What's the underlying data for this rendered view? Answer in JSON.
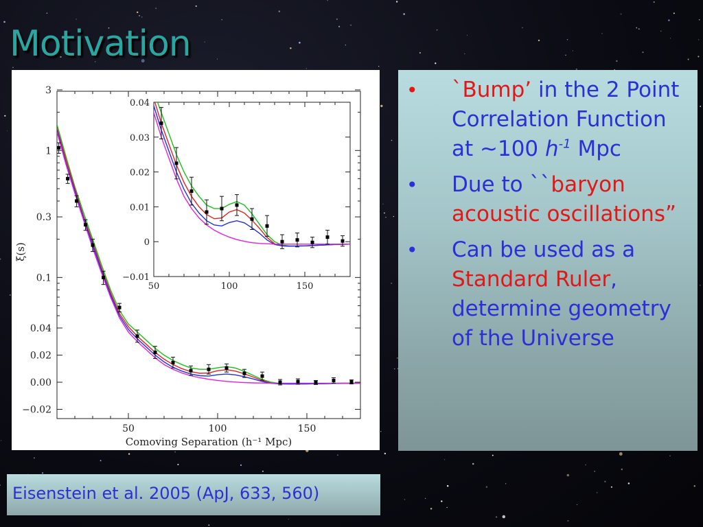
{
  "slide": {
    "title": "Motivation",
    "citation": "Eisenstein et al. 2005 (ApJ, 633, 560)",
    "bullets": [
      {
        "parts": [
          {
            "text": "`Bump’",
            "color": "red"
          },
          {
            "text": " in the 2 Point Correlation Function at ~100 ",
            "color": "blue"
          },
          {
            "text": "h",
            "color": "blue",
            "style": "italic"
          },
          {
            "text": "-1",
            "color": "blue",
            "style": "italic-sup"
          },
          {
            "text": " Mpc",
            "color": "blue"
          }
        ]
      },
      {
        "parts": [
          {
            "text": "Due to ``",
            "color": "blue"
          },
          {
            "text": "baryon acoustic oscillations”",
            "color": "red"
          }
        ]
      },
      {
        "parts": [
          {
            "text": "Can be used as a ",
            "color": "blue"
          },
          {
            "text": "Standard Ruler",
            "color": "red"
          },
          {
            "text": ", determine geometry of the Universe",
            "color": "blue"
          }
        ]
      }
    ],
    "colors": {
      "title": "#2aa6a0",
      "text_blue": "#2a2fd8",
      "text_red": "#e01818"
    }
  },
  "chart_data": [
    {
      "type": "line",
      "xlabel": "Comoving Separation (h⁻¹ Mpc)",
      "ylabel": "ξ(s)",
      "xlim": [
        10,
        180
      ],
      "x_ticks": [
        50,
        100,
        150
      ],
      "y_scale": "hybrid: log above 0.04, linear below",
      "y_ticks": [
        "3",
        "1",
        "0.3",
        "0.1",
        "0.04",
        "0.02",
        "0.00",
        "−0.02"
      ],
      "y_tick_values": [
        3,
        1,
        0.3,
        0.1,
        0.04,
        0.02,
        0.0,
        -0.02
      ],
      "data_points": {
        "x": [
          11,
          16,
          21,
          26,
          30,
          36,
          45,
          55,
          65,
          75,
          85,
          95,
          105,
          115,
          125,
          135,
          145,
          155,
          165,
          175
        ],
        "y": [
          1.05,
          0.6,
          0.4,
          0.26,
          0.18,
          0.1,
          0.058,
          0.034,
          0.022,
          0.0145,
          0.0085,
          0.0095,
          0.0105,
          0.0065,
          0.0045,
          0.0,
          0.0005,
          -0.0002,
          0.0013,
          0.0002
        ],
        "err": [
          0.1,
          0.05,
          0.04,
          0.025,
          0.02,
          0.012,
          0.0045,
          0.0045,
          0.0045,
          0.004,
          0.0035,
          0.0035,
          0.003,
          0.003,
          0.003,
          0.002,
          0.002,
          0.0015,
          0.002,
          0.0015
        ]
      },
      "series": [
        {
          "color": "#19c219",
          "x": [
            10,
            15,
            20,
            25,
            30,
            35,
            40,
            45,
            50,
            55,
            60,
            65,
            70,
            75,
            80,
            85,
            90,
            95,
            100,
            105,
            110,
            115,
            120,
            125,
            130,
            135,
            140,
            150,
            160,
            170,
            180
          ],
          "y": [
            1.6,
            0.9,
            0.52,
            0.32,
            0.2,
            0.125,
            0.08,
            0.055,
            0.043,
            0.037,
            0.031,
            0.025,
            0.02,
            0.016,
            0.013,
            0.0105,
            0.0095,
            0.0095,
            0.0107,
            0.0115,
            0.0105,
            0.008,
            0.005,
            0.002,
            0.0,
            -0.001,
            -0.0012,
            -0.0012,
            -0.001,
            -0.0008,
            -0.0007
          ]
        },
        {
          "color": "#e82020",
          "x": [
            10,
            15,
            20,
            25,
            30,
            35,
            40,
            45,
            50,
            55,
            60,
            65,
            70,
            75,
            80,
            85,
            90,
            95,
            100,
            105,
            110,
            115,
            120,
            125,
            130,
            135,
            140,
            150,
            160,
            170,
            180
          ],
          "y": [
            1.5,
            0.85,
            0.5,
            0.3,
            0.19,
            0.118,
            0.076,
            0.052,
            0.041,
            0.034,
            0.028,
            0.022,
            0.017,
            0.013,
            0.01,
            0.0078,
            0.0066,
            0.0068,
            0.0085,
            0.0092,
            0.0082,
            0.0062,
            0.0038,
            0.0012,
            -0.0006,
            -0.0012,
            -0.0013,
            -0.0012,
            -0.001,
            -0.0008,
            -0.0007
          ]
        },
        {
          "color": "#2030e0",
          "x": [
            10,
            15,
            20,
            25,
            30,
            35,
            40,
            45,
            50,
            55,
            60,
            65,
            70,
            75,
            80,
            85,
            90,
            95,
            100,
            105,
            110,
            115,
            120,
            125,
            130,
            135,
            140,
            150,
            160,
            170,
            180
          ],
          "y": [
            1.45,
            0.8,
            0.48,
            0.29,
            0.18,
            0.113,
            0.073,
            0.05,
            0.039,
            0.032,
            0.026,
            0.02,
            0.015,
            0.011,
            0.0082,
            0.006,
            0.0048,
            0.0045,
            0.0055,
            0.006,
            0.0054,
            0.004,
            0.0024,
            0.0005,
            -0.0008,
            -0.0012,
            -0.0013,
            -0.0012,
            -0.001,
            -0.0008,
            -0.0007
          ]
        },
        {
          "color": "#e020e0",
          "x": [
            10,
            15,
            20,
            25,
            30,
            35,
            40,
            45,
            50,
            55,
            60,
            65,
            70,
            75,
            80,
            85,
            90,
            95,
            100,
            105,
            110,
            115,
            120,
            125,
            130,
            135,
            140,
            150,
            160,
            170,
            180
          ],
          "y": [
            1.4,
            0.78,
            0.46,
            0.28,
            0.17,
            0.108,
            0.07,
            0.048,
            0.037,
            0.03,
            0.024,
            0.018,
            0.013,
            0.0095,
            0.0068,
            0.0048,
            0.0033,
            0.0022,
            0.0013,
            0.0006,
            0.0001,
            -0.0003,
            -0.0005,
            -0.0006,
            -0.0007,
            -0.0007,
            -0.0007,
            -0.0007,
            -0.0007,
            -0.0007,
            -0.0007
          ]
        }
      ]
    },
    {
      "type": "line",
      "note_inset": "inset zoom",
      "xlim": [
        50,
        180
      ],
      "ylim": [
        -0.01,
        0.04
      ],
      "x_ticks": [
        50,
        100,
        150
      ],
      "y_ticks": [
        "0.04",
        "0.03",
        "0.02",
        "0.01",
        "0",
        "−0.01"
      ],
      "y_tick_values": [
        0.04,
        0.03,
        0.02,
        0.01,
        0.0,
        -0.01
      ],
      "data_points": {
        "x": [
          55,
          65,
          75,
          85,
          95,
          105,
          115,
          125,
          135,
          145,
          155,
          165,
          175
        ],
        "y": [
          0.034,
          0.0225,
          0.0145,
          0.0085,
          0.0095,
          0.0105,
          0.0065,
          0.0045,
          0.0,
          0.0005,
          -0.0002,
          0.0013,
          0.0002
        ],
        "err": [
          0.0045,
          0.0045,
          0.004,
          0.0035,
          0.0035,
          0.003,
          0.003,
          0.003,
          0.002,
          0.002,
          0.0015,
          0.002,
          0.0015
        ]
      },
      "series_ref": "same model curves as main panel"
    }
  ]
}
